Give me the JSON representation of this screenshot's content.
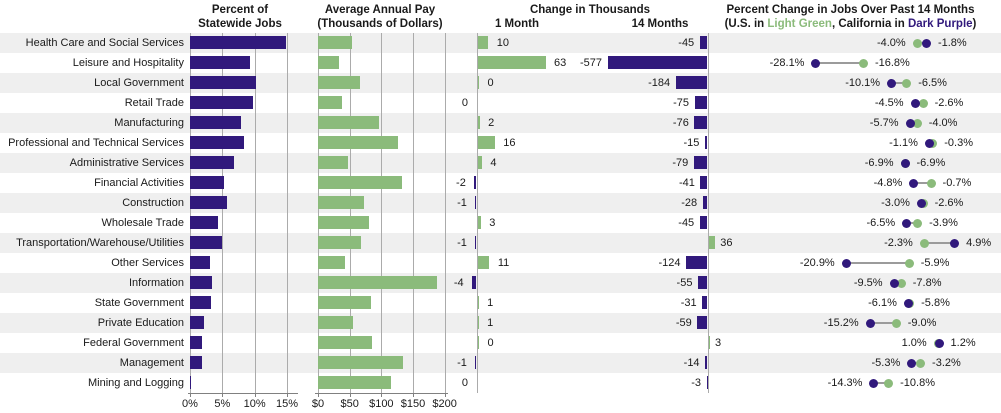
{
  "headers": {
    "col1_line1": "Percent of",
    "col1_line2": "Statewide Jobs",
    "col2_line1": "Average Annual Pay",
    "col2_line2": "(Thousands of Dollars)",
    "col3_title": "Change in Thousands",
    "col3_sub1": "1 Month",
    "col3_sub2": "14 Months",
    "col4_line1": "Percent Change in Jobs Over Past 14 Months",
    "col4_sub_prefix": "(U.S. in ",
    "col4_sub_green": "Light Green",
    "col4_sub_mid": ", California in ",
    "col4_sub_purple": "Dark Purple",
    "col4_sub_suffix": ")"
  },
  "colors": {
    "dark_purple": "#31197C",
    "light_green": "#8BBB7B",
    "row_stripe": "#EFEFEF",
    "gridline": "#ABABAB"
  },
  "chart_data": {
    "type": "bar",
    "panels": [
      {
        "id": "pct_jobs",
        "title": "Percent of Statewide Jobs",
        "unit": "percent",
        "x_ticks": [
          "0%",
          "5%",
          "10%",
          "15%"
        ],
        "x_tick_values": [
          0,
          5,
          10,
          15
        ],
        "x_range": [
          0,
          17
        ]
      },
      {
        "id": "pay",
        "title": "Average Annual Pay (Thousands of Dollars)",
        "unit": "thousands_of_dollars",
        "x_ticks": [
          "$0",
          "$50",
          "$100",
          "$150",
          "$200"
        ],
        "x_tick_values": [
          0,
          50,
          100,
          150,
          200
        ],
        "x_range": [
          0,
          212
        ]
      },
      {
        "id": "change_1mo",
        "title": "Change in Thousands - 1 Month",
        "unit": "thousands_of_jobs"
      },
      {
        "id": "change_14mo",
        "title": "Change in Thousands - 14 Months",
        "unit": "thousands_of_jobs"
      },
      {
        "id": "pct_change_14mo",
        "title": "Percent Change in Jobs Over Past 14 Months",
        "legend": [
          {
            "name": "U.S.",
            "color": "#8BBB7B"
          },
          {
            "name": "California",
            "color": "#31197C"
          }
        ]
      }
    ],
    "rows": [
      {
        "label": "Health Care and Social Services",
        "pct_jobs": 14.8,
        "pay": 54,
        "change_1mo": {
          "value": 10,
          "label": "10",
          "label_side": "right"
        },
        "change_14mo": {
          "value": -45,
          "label": "-45"
        },
        "pct_change": {
          "us": -4.0,
          "ca": -1.8,
          "label_left": "-4.0%",
          "label_right": "-1.8%"
        }
      },
      {
        "label": "Leisure and Hospitality",
        "pct_jobs": 9.3,
        "pay": 33,
        "change_1mo": {
          "value": 63,
          "label": "63",
          "label_side": "right"
        },
        "change_14mo": {
          "value": -577,
          "label": "-577"
        },
        "pct_change": {
          "us": -16.8,
          "ca": -28.1,
          "label_left": "-28.1%",
          "label_right": "-16.8%"
        }
      },
      {
        "label": "Local Government",
        "pct_jobs": 10.2,
        "pay": 67,
        "change_1mo": {
          "value": 0,
          "label": "0",
          "label_side": "right"
        },
        "change_14mo": {
          "value": -184,
          "label": "-184"
        },
        "pct_change": {
          "us": -6.5,
          "ca": -10.1,
          "label_left": "-10.1%",
          "label_right": "-6.5%"
        }
      },
      {
        "label": "Retail Trade",
        "pct_jobs": 9.7,
        "pay": 38,
        "change_1mo": {
          "value": 0,
          "label": "0",
          "label_side": "left"
        },
        "change_14mo": {
          "value": -75,
          "label": "-75"
        },
        "pct_change": {
          "us": -2.6,
          "ca": -4.5,
          "label_left": "-4.5%",
          "label_right": "-2.6%"
        }
      },
      {
        "label": "Manufacturing",
        "pct_jobs": 7.9,
        "pay": 97,
        "change_1mo": {
          "value": 2,
          "label": "2",
          "label_side": "right"
        },
        "change_14mo": {
          "value": -76,
          "label": "-76"
        },
        "pct_change": {
          "us": -4.0,
          "ca": -5.7,
          "label_left": "-5.7%",
          "label_right": "-4.0%"
        }
      },
      {
        "label": "Professional and Technical Services",
        "pct_jobs": 8.3,
        "pay": 127,
        "change_1mo": {
          "value": 16,
          "label": "16",
          "label_side": "right"
        },
        "change_14mo": {
          "value": -15,
          "label": "-15"
        },
        "pct_change": {
          "us": -0.3,
          "ca": -1.1,
          "label_left": "-1.1%",
          "label_right": "-0.3%"
        }
      },
      {
        "label": "Administrative Services",
        "pct_jobs": 6.8,
        "pay": 48,
        "change_1mo": {
          "value": 4,
          "label": "4",
          "label_side": "right"
        },
        "change_14mo": {
          "value": -79,
          "label": "-79"
        },
        "pct_change": {
          "us": -6.9,
          "ca": -6.9,
          "label_left": "-6.9%",
          "label_right": "-6.9%"
        }
      },
      {
        "label": "Financial Activities",
        "pct_jobs": 5.3,
        "pay": 133,
        "change_1mo": {
          "value": -2,
          "label": "-2",
          "label_side": "left"
        },
        "change_14mo": {
          "value": -41,
          "label": "-41"
        },
        "pct_change": {
          "us": -0.7,
          "ca": -4.8,
          "label_left": "-4.8%",
          "label_right": "-0.7%"
        }
      },
      {
        "label": "Construction",
        "pct_jobs": 5.7,
        "pay": 73,
        "change_1mo": {
          "value": -1,
          "label": "-1",
          "label_side": "left"
        },
        "change_14mo": {
          "value": -28,
          "label": "-28"
        },
        "pct_change": {
          "us": -2.6,
          "ca": -3.0,
          "label_left": "-3.0%",
          "label_right": "-2.6%"
        }
      },
      {
        "label": "Wholesale Trade",
        "pct_jobs": 4.4,
        "pay": 81,
        "change_1mo": {
          "value": 3,
          "label": "3",
          "label_side": "right"
        },
        "change_14mo": {
          "value": -45,
          "label": "-45"
        },
        "pct_change": {
          "us": -3.9,
          "ca": -6.5,
          "label_left": "-6.5%",
          "label_right": "-3.9%"
        }
      },
      {
        "label": "Transportation/Warehouse/Utilities",
        "pct_jobs": 4.9,
        "pay": 68,
        "change_1mo": {
          "value": -1,
          "label": "-1",
          "label_side": "left"
        },
        "change_14mo": {
          "value": 36,
          "label": "36"
        },
        "pct_change": {
          "us": -2.3,
          "ca": 4.9,
          "label_left": "-2.3%",
          "label_right": "4.9%"
        }
      },
      {
        "label": "Other Services",
        "pct_jobs": 3.1,
        "pay": 42,
        "change_1mo": {
          "value": 11,
          "label": "11",
          "label_side": "right"
        },
        "change_14mo": {
          "value": -124,
          "label": "-124"
        },
        "pct_change": {
          "us": -5.9,
          "ca": -20.9,
          "label_left": "-20.9%",
          "label_right": "-5.9%"
        }
      },
      {
        "label": "Information",
        "pct_jobs": 3.4,
        "pay": 188,
        "change_1mo": {
          "value": -4,
          "label": "-4",
          "label_side": "left"
        },
        "change_14mo": {
          "value": -55,
          "label": "-55"
        },
        "pct_change": {
          "us": -7.8,
          "ca": -9.5,
          "label_left": "-9.5%",
          "label_right": "-7.8%"
        }
      },
      {
        "label": "State Government",
        "pct_jobs": 3.3,
        "pay": 84,
        "change_1mo": {
          "value": 1,
          "label": "1",
          "label_side": "right"
        },
        "change_14mo": {
          "value": -31,
          "label": "-31"
        },
        "pct_change": {
          "us": -5.8,
          "ca": -6.1,
          "label_left": "-6.1%",
          "label_right": "-5.8%"
        }
      },
      {
        "label": "Private Education",
        "pct_jobs": 2.2,
        "pay": 56,
        "change_1mo": {
          "value": 1,
          "label": "1",
          "label_side": "right"
        },
        "change_14mo": {
          "value": -59,
          "label": "-59"
        },
        "pct_change": {
          "us": -9.0,
          "ca": -15.2,
          "label_left": "-15.2%",
          "label_right": "-9.0%"
        }
      },
      {
        "label": "Federal Government",
        "pct_jobs": 1.8,
        "pay": 85,
        "change_1mo": {
          "value": 0,
          "label": "0",
          "label_side": "right"
        },
        "change_14mo": {
          "value": 3,
          "label": "3"
        },
        "pct_change": {
          "us": 1.0,
          "ca": 1.2,
          "label_left": "1.0%",
          "label_right": "1.2%"
        }
      },
      {
        "label": "Management",
        "pct_jobs": 1.9,
        "pay": 135,
        "change_1mo": {
          "value": -1,
          "label": "-1",
          "label_side": "left"
        },
        "change_14mo": {
          "value": -14,
          "label": "-14"
        },
        "pct_change": {
          "us": -3.2,
          "ca": -5.3,
          "label_left": "-5.3%",
          "label_right": "-3.2%"
        }
      },
      {
        "label": "Mining and Logging",
        "pct_jobs": 0.2,
        "pay": 116,
        "change_1mo": {
          "value": 0,
          "label": "0",
          "label_side": "left"
        },
        "change_14mo": {
          "value": -3,
          "label": "-3"
        },
        "pct_change": {
          "us": -10.8,
          "ca": -14.3,
          "label_left": "-14.3%",
          "label_right": "-10.8%"
        }
      }
    ]
  }
}
